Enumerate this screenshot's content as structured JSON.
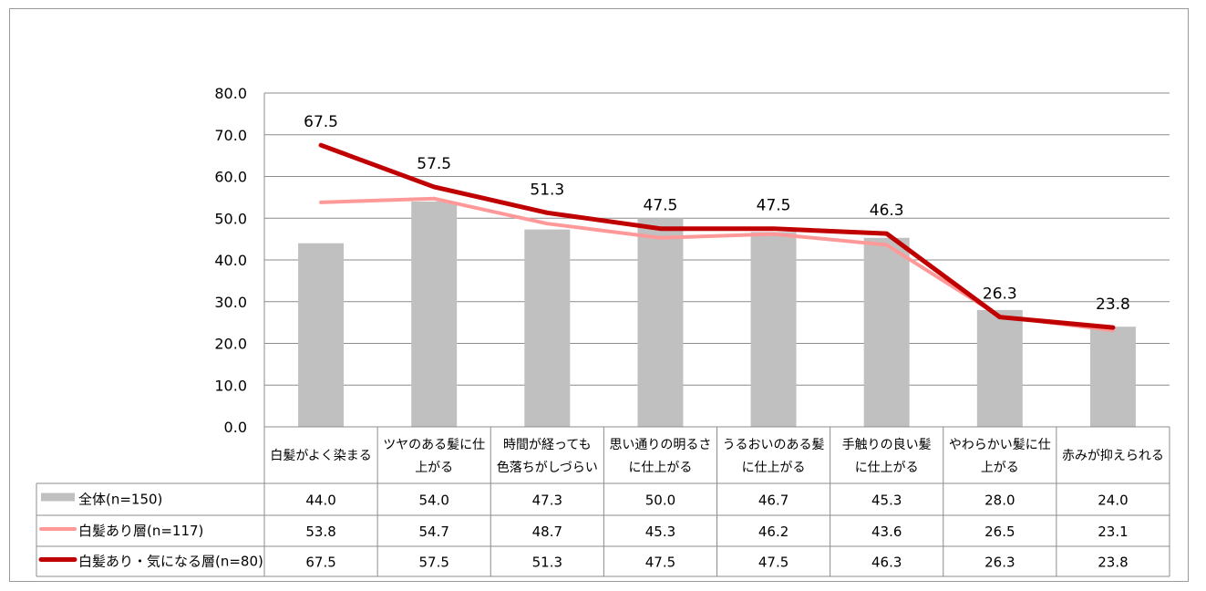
{
  "chart_data": {
    "type": "bar",
    "categories": [
      [
        "白髪がよく染まる"
      ],
      [
        "ツヤのある髪に仕",
        "上がる"
      ],
      [
        "時間が経っても",
        "色落ちがしづらい"
      ],
      [
        "思い通りの明るさ",
        "に仕上がる"
      ],
      [
        "うるおいのある髪",
        "に仕上がる"
      ],
      [
        "手触りの良い髪",
        "に仕上がる"
      ],
      [
        "やわらかい髪に仕",
        "上がる"
      ],
      [
        "赤みが抑えられる"
      ]
    ],
    "series": [
      {
        "name": "全体(n=150)",
        "type": "bar",
        "color": "#c0c0c0",
        "values": [
          44.0,
          54.0,
          47.3,
          50.0,
          46.7,
          45.3,
          28.0,
          24.0
        ]
      },
      {
        "name": "白髪あり層(n=117)",
        "type": "line",
        "color": "#ff9999",
        "values": [
          53.8,
          54.7,
          48.7,
          45.3,
          46.2,
          43.6,
          26.5,
          23.1
        ]
      },
      {
        "name": "白髪あり・気になる層(n=80)",
        "type": "line",
        "color": "#c00000",
        "values": [
          67.5,
          57.5,
          51.3,
          47.5,
          47.5,
          46.3,
          26.3,
          23.8
        ],
        "data_labels": true
      }
    ],
    "yticks": [
      "0.0",
      "10.0",
      "20.0",
      "30.0",
      "40.0",
      "50.0",
      "60.0",
      "70.0",
      "80.0"
    ],
    "ylim": [
      0,
      80
    ],
    "grid": true,
    "legend": "data-table-left"
  }
}
